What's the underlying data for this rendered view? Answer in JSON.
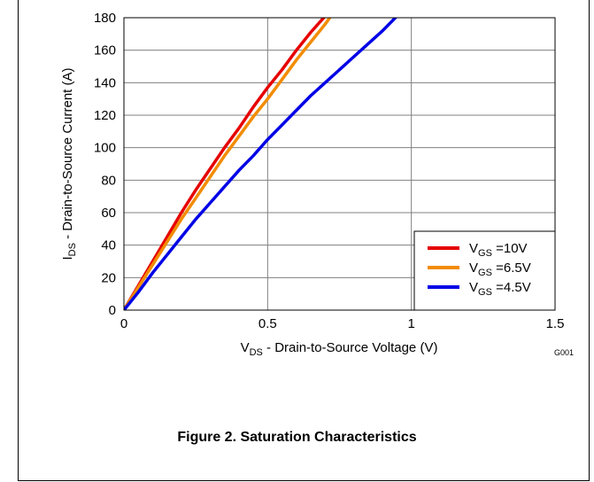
{
  "figure": {
    "caption": "Figure 2. Saturation Characteristics",
    "code": "G001"
  },
  "chart_data": {
    "type": "line",
    "title": "",
    "xlabel": {
      "main": "V",
      "sub": "DS",
      "rest": " - Drain-to-Source Voltage (V)"
    },
    "ylabel": {
      "main": "I",
      "sub": "DS",
      "rest": " - Drain-to-Source Current (A)"
    },
    "xlim": [
      0,
      1.5
    ],
    "ylim": [
      0,
      180
    ],
    "xticks": [
      0,
      0.5,
      1,
      1.5
    ],
    "xtick_labels": [
      "0",
      "0.5",
      "1",
      "1.5"
    ],
    "yticks": [
      0,
      20,
      40,
      60,
      80,
      100,
      120,
      140,
      160,
      180
    ],
    "ytick_labels": [
      "0",
      "20",
      "40",
      "60",
      "80",
      "100",
      "120",
      "140",
      "160",
      "180"
    ],
    "grid": true,
    "legend_position": "bottom-right",
    "series": [
      {
        "name": "V_GS =10V",
        "label": {
          "main": "V",
          "sub": "GS",
          "rest": " =10V"
        },
        "color": "#e60000",
        "x": [
          0,
          0.05,
          0.1,
          0.15,
          0.2,
          0.25,
          0.3,
          0.35,
          0.4,
          0.45,
          0.5,
          0.55,
          0.6,
          0.65,
          0.7
        ],
        "y": [
          0,
          15,
          30,
          45,
          60,
          74,
          87,
          100,
          112,
          125,
          137,
          148,
          160,
          171,
          181
        ]
      },
      {
        "name": "V_GS =6.5V",
        "label": {
          "main": "V",
          "sub": "GS",
          "rest": " =6.5V"
        },
        "color": "#f28c00",
        "x": [
          0,
          0.05,
          0.1,
          0.15,
          0.2,
          0.25,
          0.3,
          0.35,
          0.4,
          0.45,
          0.5,
          0.55,
          0.6,
          0.65,
          0.7,
          0.72
        ],
        "y": [
          0,
          14,
          28,
          42,
          56,
          69,
          82,
          95,
          107,
          119,
          130,
          142,
          154,
          165,
          176,
          181
        ]
      },
      {
        "name": "V_GS =4.5V",
        "label": {
          "main": "V",
          "sub": "GS",
          "rest": " =4.5V"
        },
        "color": "#0000e6",
        "x": [
          0,
          0.05,
          0.1,
          0.15,
          0.2,
          0.25,
          0.3,
          0.35,
          0.4,
          0.45,
          0.5,
          0.55,
          0.6,
          0.65,
          0.7,
          0.75,
          0.8,
          0.85,
          0.9,
          0.95
        ],
        "y": [
          0,
          11,
          23,
          34,
          45,
          56,
          66,
          76,
          86,
          95,
          105,
          114,
          123,
          132,
          140,
          148,
          156,
          164,
          172,
          181
        ]
      }
    ]
  }
}
